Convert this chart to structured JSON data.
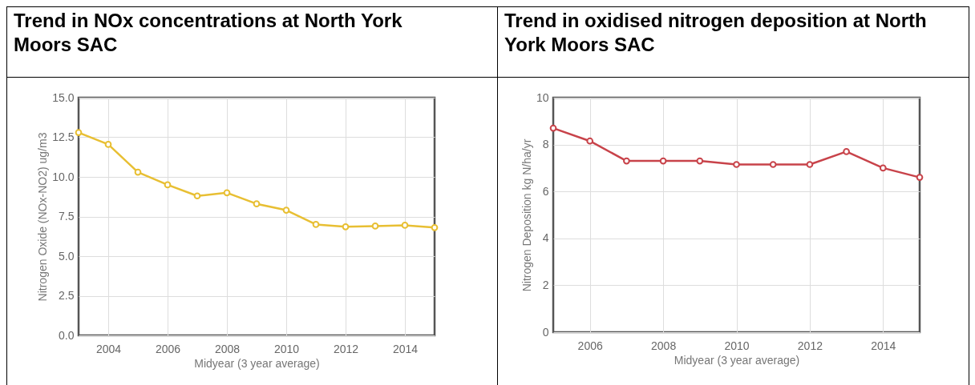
{
  "chart_data": [
    {
      "type": "line",
      "title": "Trend in NOx concentrations at North York Moors SAC",
      "xlabel": "Midyear (3 year average)",
      "ylabel": "Nitrogen Oxide (NOx-NO2) ug/m3",
      "x": [
        2003,
        2004,
        2005,
        2006,
        2007,
        2008,
        2009,
        2010,
        2011,
        2012,
        2013,
        2014,
        2015
      ],
      "series": [
        {
          "color": "#e8bf33",
          "values": [
            12.8,
            12.05,
            10.3,
            9.5,
            8.8,
            9.0,
            8.3,
            7.9,
            7.0,
            6.85,
            6.9,
            6.95,
            6.8
          ]
        }
      ],
      "xlim": [
        2003,
        2015
      ],
      "xticks": [
        2004,
        2006,
        2008,
        2010,
        2012,
        2014
      ],
      "ylim": [
        0,
        15
      ],
      "yticks": [
        {
          "value": 0,
          "label": "0.0"
        },
        2.5,
        {
          "value": 5,
          "label": "5.0"
        },
        7.5,
        {
          "value": 10,
          "label": "10.0"
        },
        12.5,
        {
          "value": 15,
          "label": "15.0"
        }
      ],
      "grid": true,
      "marker": "circle"
    },
    {
      "type": "line",
      "title": "Trend in oxidised nitrogen deposition at North York Moors SAC",
      "xlabel": "Midyear (3 year average)",
      "ylabel": "Nitrogen Deposition kg N/ha/yr",
      "x": [
        2005,
        2006,
        2007,
        2008,
        2009,
        2010,
        2011,
        2012,
        2013,
        2014,
        2015
      ],
      "series": [
        {
          "color": "#c8434a",
          "values": [
            8.7,
            8.15,
            7.3,
            7.3,
            7.3,
            7.15,
            7.15,
            7.15,
            7.7,
            7.0,
            6.6
          ]
        }
      ],
      "xlim": [
        2005,
        2015
      ],
      "xticks": [
        2006,
        2008,
        2010,
        2012,
        2014
      ],
      "ylim": [
        0,
        10
      ],
      "yticks": [
        0,
        2,
        4,
        6,
        8,
        10
      ],
      "grid": true,
      "marker": "circle"
    }
  ]
}
